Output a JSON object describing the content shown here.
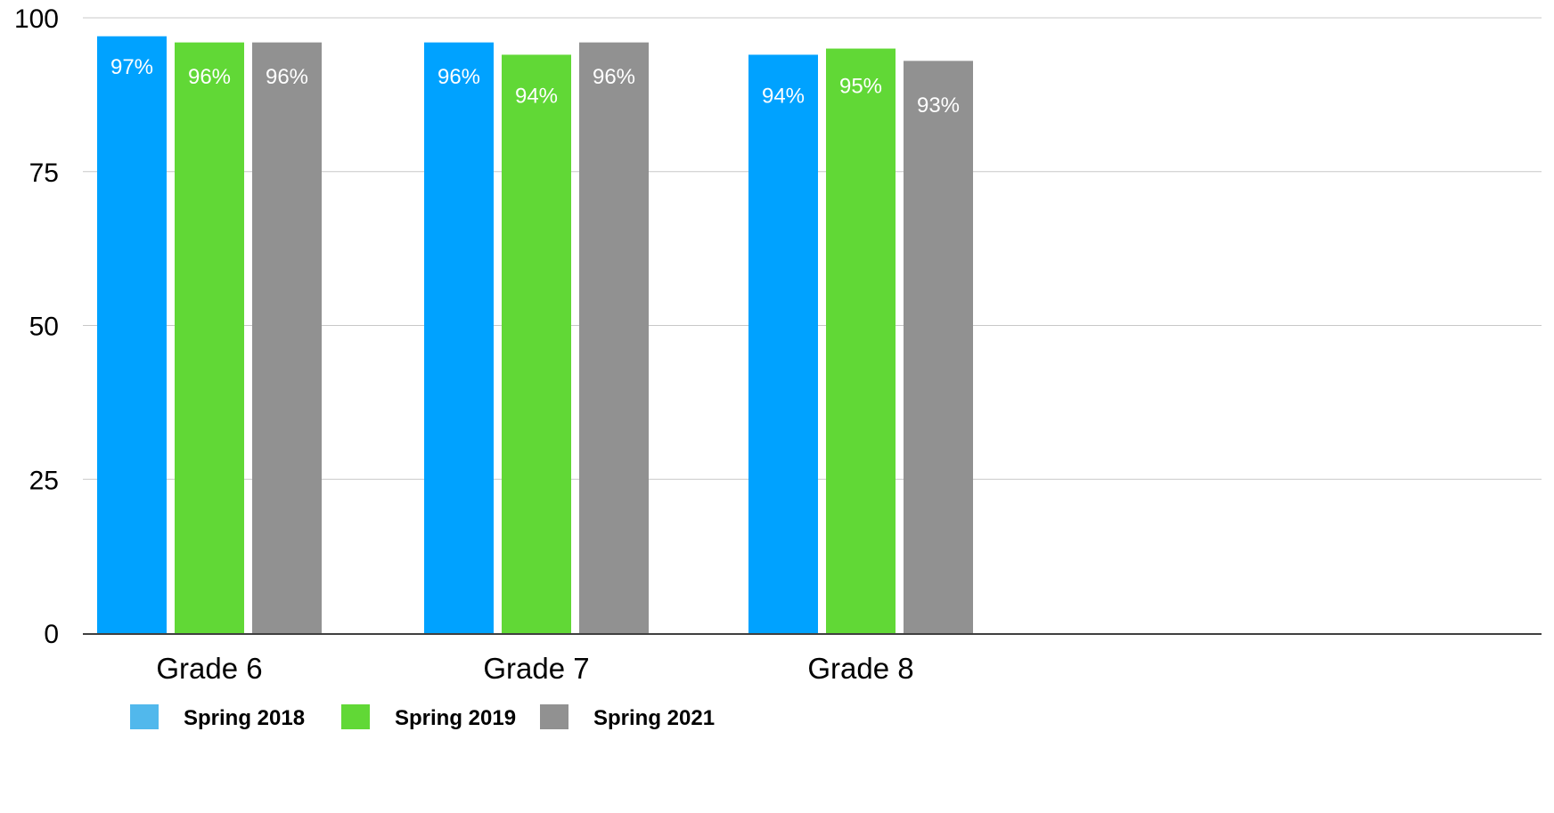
{
  "chart_data": {
    "type": "bar",
    "categories": [
      "Grade 6",
      "Grade 7",
      "Grade 8"
    ],
    "series": [
      {
        "name": "Spring 2018",
        "values": [
          97,
          96,
          94
        ],
        "labels": [
          "97%",
          "96%",
          "94%"
        ],
        "color": "#00a2ff",
        "legend_color": "#51b8ec"
      },
      {
        "name": "Spring 2019",
        "values": [
          96,
          94,
          95
        ],
        "labels": [
          "96%",
          "94%",
          "95%"
        ],
        "color": "#61d836",
        "legend_color": "#61d836"
      },
      {
        "name": "Spring 2021",
        "values": [
          96,
          96,
          93
        ],
        "labels": [
          "96%",
          "96%",
          "93%"
        ],
        "color": "#919191",
        "legend_color": "#919191"
      }
    ],
    "yticks": [
      "0",
      "25",
      "50",
      "75",
      "100"
    ],
    "ylim": [
      0,
      100
    ],
    "grid": true,
    "legend_position": "bottom-left",
    "title": "",
    "xlabel": "",
    "ylabel": ""
  }
}
